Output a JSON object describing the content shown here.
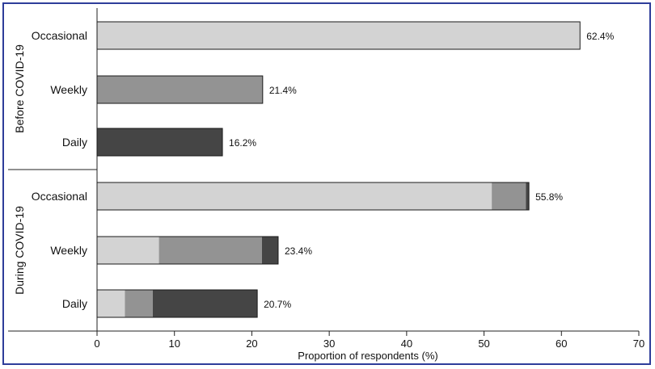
{
  "chart_data": {
    "type": "bar",
    "orientation": "horizontal",
    "stacked": true,
    "xlabel": "Proportion of respondents (%)",
    "xlim": [
      0,
      70
    ],
    "xticks": [
      0,
      10,
      20,
      30,
      40,
      50,
      60,
      70
    ],
    "grid": false,
    "colors": {
      "occasional": "#d3d3d3",
      "weekly": "#939393",
      "daily": "#454545",
      "outline": "#1a1a1a",
      "frame": "#2e3d9a"
    },
    "groups": [
      {
        "label": "Before COVID-19",
        "bars": [
          {
            "category": "Occasional",
            "label": "62.4%",
            "total": 62.4,
            "segments": [
              {
                "part": "occasional",
                "value": 62.4
              }
            ]
          },
          {
            "category": "Weekly",
            "label": "21.4%",
            "total": 21.4,
            "segments": [
              {
                "part": "weekly",
                "value": 21.4
              }
            ]
          },
          {
            "category": "Daily",
            "label": "16.2%",
            "total": 16.2,
            "segments": [
              {
                "part": "daily",
                "value": 16.2
              }
            ]
          }
        ]
      },
      {
        "label": "During COVID-19",
        "bars": [
          {
            "category": "Occasional",
            "label": "55.8%",
            "total": 55.8,
            "segments": [
              {
                "part": "occasional",
                "value": 51.0
              },
              {
                "part": "weekly",
                "value": 4.4
              },
              {
                "part": "daily",
                "value": 0.4
              }
            ]
          },
          {
            "category": "Weekly",
            "label": "23.4%",
            "total": 23.4,
            "segments": [
              {
                "part": "occasional",
                "value": 8.0
              },
              {
                "part": "weekly",
                "value": 13.3
              },
              {
                "part": "daily",
                "value": 2.1
              }
            ]
          },
          {
            "category": "Daily",
            "label": "20.7%",
            "total": 20.7,
            "segments": [
              {
                "part": "occasional",
                "value": 3.6
              },
              {
                "part": "weekly",
                "value": 3.6
              },
              {
                "part": "daily",
                "value": 13.5
              }
            ]
          }
        ]
      }
    ]
  }
}
